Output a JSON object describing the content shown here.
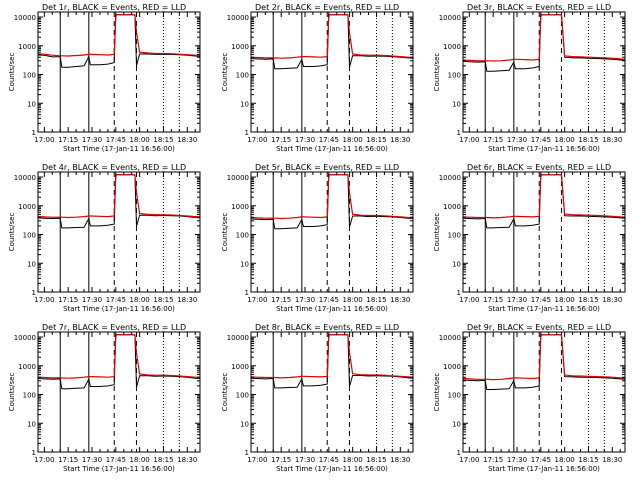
{
  "chart_data": {
    "type": "line",
    "layout": "3x3 grid of panels",
    "x_axis": {
      "label": "Start Time (17-Jan-11 16:56:00)",
      "ticks": [
        "17:00",
        "17:15",
        "17:30",
        "17:45",
        "18:00",
        "18:15",
        "18:30"
      ],
      "range": [
        "16:56",
        "18:38"
      ]
    },
    "y_axis": {
      "label": "Counts/sec",
      "scale": "log",
      "range": [
        1,
        15000
      ],
      "ticks": [
        "1",
        "10",
        "100",
        "1000",
        "10000"
      ]
    },
    "vertical_markers": {
      "solid": [
        "17:10",
        "17:28"
      ],
      "dashed": [
        "17:44",
        "17:58"
      ],
      "dotted": [
        "18:15",
        "18:25"
      ]
    },
    "time_points": [
      "16:56",
      "17:00",
      "17:05",
      "17:10",
      "17:11",
      "17:15",
      "17:20",
      "17:25",
      "17:28",
      "17:29",
      "17:35",
      "17:40",
      "17:44",
      "17:45",
      "17:46",
      "17:50",
      "17:55",
      "17:57",
      "17:58",
      "18:00",
      "18:05",
      "18:10",
      "18:15",
      "18:20",
      "18:25",
      "18:30",
      "18:35",
      "18:38"
    ],
    "colors": {
      "events": "#000000",
      "lld": "#e00000"
    },
    "panels": [
      {
        "title": "Det 1r, BLACK = Events, RED = LLD",
        "series": [
          {
            "name": "Events",
            "values": [
              480,
              470,
              410,
              420,
              180,
              180,
              190,
              200,
              420,
              220,
              220,
              230,
              260,
              12000,
              12000,
              12000,
              12000,
              12000,
              200,
              520,
              520,
              500,
              510,
              500,
              490,
              470,
              440,
              430
            ]
          },
          {
            "name": "LLD",
            "values": [
              520,
              510,
              470,
              450,
              450,
              440,
              460,
              480,
              500,
              500,
              490,
              480,
              500,
              12000,
              12000,
              12000,
              12000,
              12000,
              3000,
              600,
              560,
              540,
              540,
              530,
              510,
              490,
              470,
              460
            ]
          }
        ]
      },
      {
        "title": "Det 2r, BLACK = Events, RED = LLD",
        "series": [
          {
            "name": "Events",
            "values": [
              360,
              350,
              340,
              350,
              160,
              160,
              165,
              170,
              330,
              190,
              190,
              200,
              220,
              12000,
              12000,
              12000,
              12000,
              12000,
              180,
              450,
              450,
              430,
              440,
              430,
              420,
              400,
              380,
              370
            ]
          },
          {
            "name": "LLD",
            "values": [
              400,
              390,
              380,
              380,
              380,
              370,
              380,
              400,
              420,
              420,
              410,
              400,
              420,
              12000,
              12000,
              12000,
              12000,
              12000,
              2800,
              520,
              480,
              470,
              470,
              460,
              440,
              420,
              400,
              390
            ]
          }
        ]
      },
      {
        "title": "Det 3r, BLACK = Events, RED = LLD",
        "series": [
          {
            "name": "Events",
            "values": [
              290,
              280,
              270,
              280,
              130,
              130,
              135,
              140,
              270,
              160,
              160,
              170,
              190,
              12000,
              12000,
              12000,
              12000,
              12000,
              12000,
              400,
              380,
              380,
              370,
              360,
              350,
              340,
              320,
              310
            ]
          },
          {
            "name": "LLD",
            "values": [
              320,
              310,
              300,
              300,
              300,
              295,
              300,
              320,
              340,
              340,
              330,
              320,
              340,
              12000,
              12000,
              12000,
              12000,
              12000,
              12000,
              450,
              420,
              410,
              400,
              390,
              380,
              370,
              350,
              340
            ]
          }
        ]
      },
      {
        "title": "Det 4r, BLACK = Events, RED = LLD",
        "series": [
          {
            "name": "Events",
            "values": [
              380,
              370,
              360,
              370,
              170,
              170,
              175,
              180,
              360,
              200,
              200,
              210,
              230,
              12000,
              12000,
              12000,
              12000,
              12000,
              190,
              470,
              470,
              450,
              460,
              450,
              440,
              420,
              390,
              380
            ]
          },
          {
            "name": "LLD",
            "values": [
              420,
              410,
              400,
              400,
              400,
              390,
              400,
              420,
              440,
              440,
              430,
              420,
              440,
              12000,
              12000,
              12000,
              12000,
              12000,
              2900,
              540,
              500,
              490,
              490,
              480,
              460,
              440,
              420,
              410
            ]
          }
        ]
      },
      {
        "title": "Det 5r, BLACK = Events, RED = LLD",
        "series": [
          {
            "name": "Events",
            "values": [
              350,
              340,
              330,
              340,
              160,
              160,
              165,
              170,
              330,
              190,
              190,
              200,
              220,
              12000,
              12000,
              12000,
              12000,
              12000,
              180,
              440,
              440,
              420,
              430,
              420,
              410,
              390,
              370,
              360
            ]
          },
          {
            "name": "LLD",
            "values": [
              390,
              380,
              370,
              370,
              370,
              360,
              370,
              390,
              410,
              410,
              400,
              390,
              410,
              12000,
              12000,
              12000,
              12000,
              12000,
              2800,
              510,
              470,
              460,
              460,
              450,
              430,
              410,
              390,
              380
            ]
          }
        ]
      },
      {
        "title": "Det 6r, BLACK = Events, RED = LLD",
        "series": [
          {
            "name": "Events",
            "values": [
              370,
              360,
              350,
              360,
              170,
              170,
              175,
              180,
              350,
              200,
              200,
              210,
              230,
              12000,
              12000,
              12000,
              12000,
              12000,
              12000,
              450,
              440,
              440,
              430,
              420,
              410,
              400,
              380,
              370
            ]
          },
          {
            "name": "LLD",
            "values": [
              410,
              400,
              390,
              390,
              390,
              380,
              390,
              410,
              430,
              430,
              420,
              410,
              430,
              12000,
              12000,
              12000,
              12000,
              12000,
              12000,
              520,
              490,
              480,
              470,
              460,
              450,
              430,
              410,
              400
            ]
          }
        ]
      },
      {
        "title": "Det 7r, BLACK = Events, RED = LLD",
        "series": [
          {
            "name": "Events",
            "values": [
              360,
              350,
              340,
              350,
              160,
              160,
              165,
              170,
              340,
              190,
              190,
              200,
              220,
              12000,
              12000,
              12000,
              12000,
              12000,
              180,
              450,
              450,
              430,
              440,
              430,
              420,
              400,
              370,
              360
            ]
          },
          {
            "name": "LLD",
            "values": [
              400,
              390,
              380,
              380,
              380,
              370,
              380,
              400,
              420,
              420,
              410,
              400,
              420,
              12000,
              12000,
              12000,
              12000,
              12000,
              2800,
              520,
              480,
              470,
              470,
              460,
              440,
              420,
              400,
              390
            ]
          }
        ]
      },
      {
        "title": "Det 8r, BLACK = Events, RED = LLD",
        "series": [
          {
            "name": "Events",
            "values": [
              370,
              360,
              350,
              360,
              170,
              170,
              175,
              180,
              350,
              200,
              200,
              210,
              230,
              12000,
              12000,
              12000,
              12000,
              12000,
              190,
              460,
              460,
              440,
              450,
              440,
              430,
              410,
              380,
              370
            ]
          },
          {
            "name": "LLD",
            "values": [
              410,
              400,
              390,
              390,
              390,
              380,
              390,
              410,
              430,
              430,
              420,
              410,
              430,
              12000,
              12000,
              12000,
              12000,
              12000,
              2900,
              530,
              490,
              480,
              480,
              470,
              450,
              430,
              410,
              400
            ]
          }
        ]
      },
      {
        "title": "Det 9r, BLACK = Events, RED = LLD",
        "series": [
          {
            "name": "Events",
            "values": [
              320,
              310,
              300,
              310,
              150,
              150,
              155,
              160,
              300,
              170,
              170,
              180,
              200,
              12000,
              12000,
              12000,
              12000,
              12000,
              12000,
              420,
              410,
              400,
              400,
              390,
              380,
              370,
              350,
              340
            ]
          },
          {
            "name": "LLD",
            "values": [
              360,
              350,
              340,
              340,
              340,
              330,
              340,
              360,
              380,
              380,
              370,
              360,
              380,
              12000,
              12000,
              12000,
              12000,
              12000,
              12000,
              480,
              450,
              440,
              430,
              420,
              410,
              400,
              380,
              370
            ]
          }
        ]
      }
    ]
  }
}
